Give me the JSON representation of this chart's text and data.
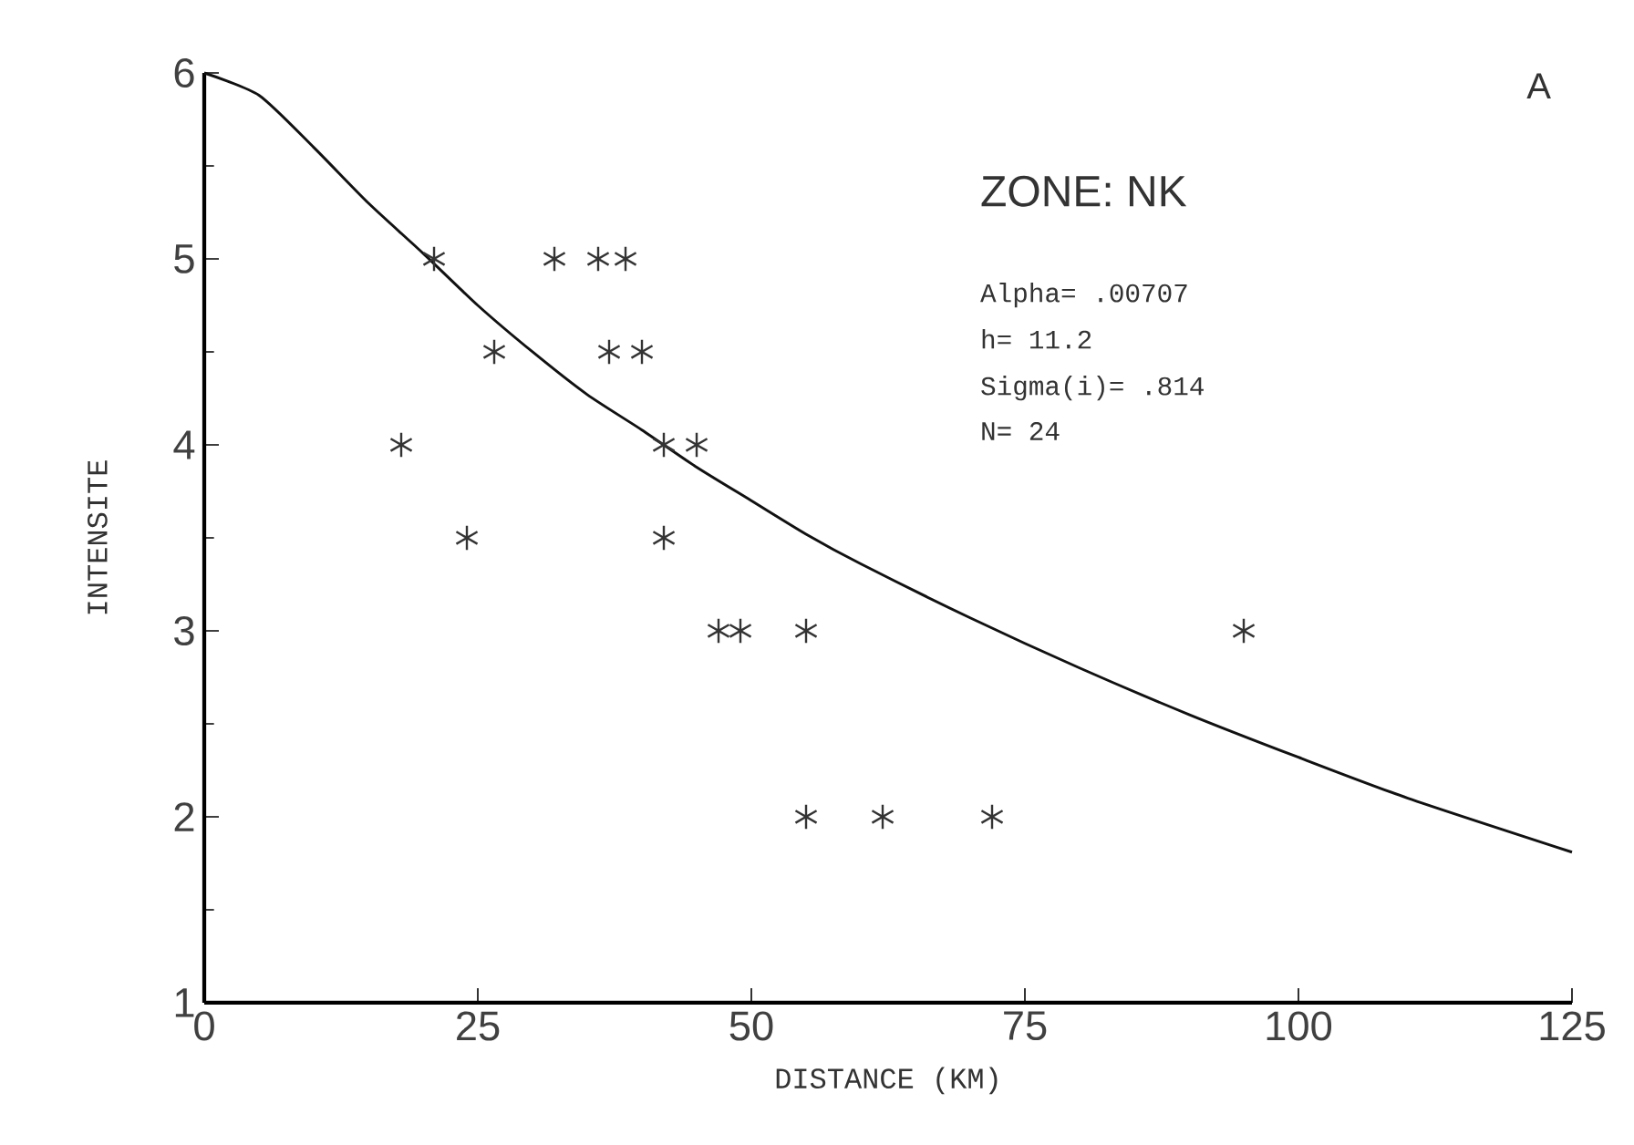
{
  "chart_data": {
    "type": "scatter",
    "xlabel": "DISTANCE  (KM)",
    "ylabel": "INTENSITE",
    "xlim": [
      0,
      125
    ],
    "ylim": [
      1,
      6
    ],
    "xticks": [
      0,
      25,
      50,
      75,
      100,
      125
    ],
    "yticks": [
      1,
      2,
      3,
      4,
      5,
      6
    ],
    "grid": false,
    "annotations": [
      "A",
      "ZONE: NK",
      "Alpha= .00707",
      "h= 11.2",
      "Sigma(i)= .814",
      "N= 24"
    ],
    "series": [
      {
        "color": "#333333",
        "marker": "cross",
        "x": [
          21,
          32,
          36,
          38.5,
          26.5,
          37,
          40,
          18,
          42,
          45,
          24,
          42,
          47,
          49,
          55,
          95,
          55,
          62,
          72
        ],
        "values": [
          5,
          5,
          5,
          5,
          4.5,
          4.5,
          4.5,
          4,
          4,
          4,
          3.5,
          3.5,
          3,
          3,
          3,
          3,
          2,
          2,
          2
        ]
      },
      {
        "type": "line",
        "color": "#111111",
        "marker": "none",
        "line_style": "solid",
        "x": [
          0,
          5,
          10,
          15,
          20,
          25,
          30,
          35,
          40,
          45,
          50,
          55,
          60,
          70,
          80,
          90,
          100,
          110,
          125
        ],
        "values": [
          6,
          5.88,
          5.6,
          5.3,
          5.03,
          4.75,
          4.5,
          4.27,
          4.08,
          3.88,
          3.7,
          3.52,
          3.36,
          3.07,
          2.8,
          2.55,
          2.32,
          2.1,
          1.81
        ]
      }
    ]
  }
}
